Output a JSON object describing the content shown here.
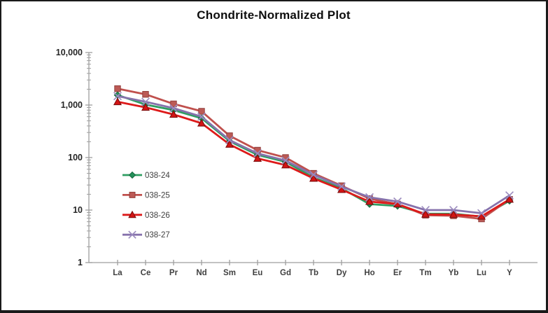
{
  "title": "Chondrite-Normalized Plot",
  "chart_data": {
    "type": "line",
    "title": "Chondrite-Normalized Plot",
    "xlabel": "",
    "ylabel": "",
    "y_scale": "log",
    "ylim": [
      1,
      10000
    ],
    "y_tick_labels": [
      "1",
      "10",
      "100",
      "1,000",
      "10,000"
    ],
    "grid": false,
    "legend_position": "inside-left",
    "background": "#ffffff",
    "axis_color": "#9e9e9e",
    "categories": [
      "La",
      "Ce",
      "Pr",
      "Nd",
      "Sm",
      "Eu",
      "Gd",
      "Tb",
      "Dy",
      "Ho",
      "Er",
      "Tm",
      "Yb",
      "Lu",
      "Y"
    ],
    "series": [
      {
        "name": "038-24",
        "marker": "diamond",
        "color": "#2f9e62",
        "marker_fill": "#23915a",
        "marker_stroke": "#15683e",
        "values": [
          1550,
          1020,
          800,
          560,
          205,
          112,
          83,
          42,
          26,
          13,
          12,
          8.5,
          8.5,
          7.5,
          15
        ]
      },
      {
        "name": "038-25",
        "marker": "square",
        "color": "#c0504d",
        "marker_fill": "#bc5a56",
        "marker_stroke": "#93403d",
        "values": [
          2050,
          1600,
          1050,
          760,
          260,
          138,
          100,
          50,
          29,
          16.5,
          13,
          8,
          7.8,
          6.8,
          16
        ]
      },
      {
        "name": "038-26",
        "marker": "triangle",
        "color": "#dd1a1a",
        "marker_fill": "#d31414",
        "marker_stroke": "#7f0e0e",
        "values": [
          1150,
          900,
          660,
          450,
          178,
          96,
          72,
          40,
          24.5,
          14.5,
          13,
          8.3,
          8.2,
          7.6,
          16
        ]
      },
      {
        "name": "038-27",
        "marker": "x",
        "color": "#8672ac",
        "marker_fill": "#9b8bbe",
        "marker_stroke": "#9b8bbe",
        "values": [
          1480,
          1150,
          870,
          600,
          215,
          120,
          88,
          47,
          28,
          17.5,
          14.5,
          10,
          10,
          8.7,
          19
        ]
      }
    ]
  }
}
